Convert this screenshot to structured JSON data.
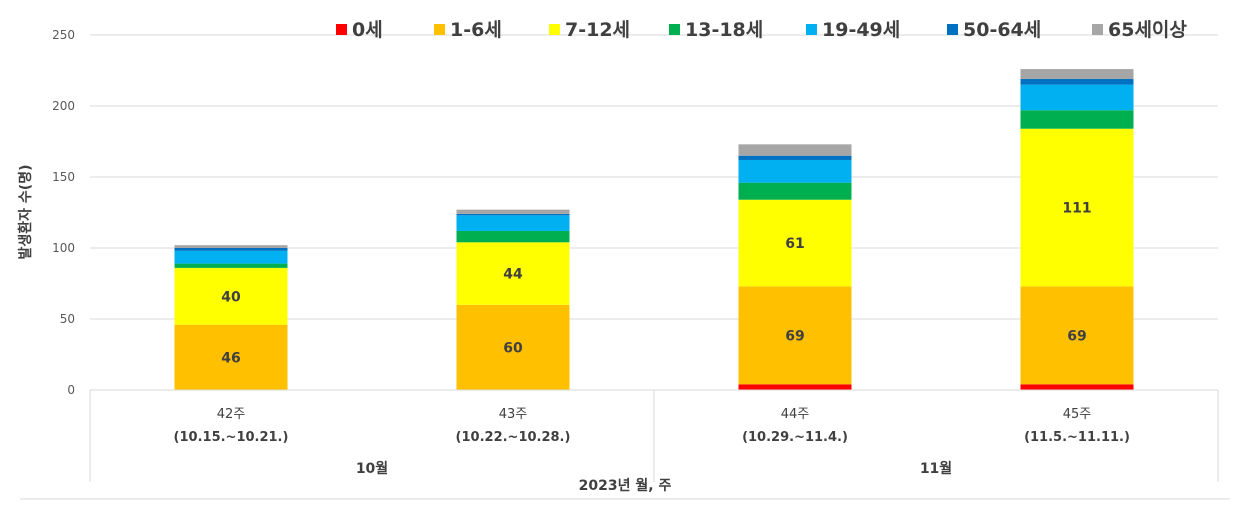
{
  "chart_data": {
    "type": "bar",
    "stacked": true,
    "categories": [
      "42주",
      "43주",
      "44주",
      "45주"
    ],
    "category_sublabels": [
      "(10.15.~10.21.)",
      "(10.22.~10.28.)",
      "(10.29.~11.4.)",
      "(11.5.~11.11.)"
    ],
    "groups": [
      {
        "label": "10월",
        "categories": [
          0,
          1
        ]
      },
      {
        "label": "11월",
        "categories": [
          2,
          3
        ]
      }
    ],
    "series": [
      {
        "name": "0세",
        "color": "#ff0000",
        "values": [
          0,
          0,
          4,
          4
        ]
      },
      {
        "name": "1-6세",
        "color": "#ffc000",
        "values": [
          46,
          60,
          69,
          69
        ]
      },
      {
        "name": "7-12세",
        "color": "#ffff00",
        "values": [
          40,
          44,
          61,
          111
        ]
      },
      {
        "name": "13-18세",
        "color": "#00b050",
        "values": [
          3,
          8,
          12,
          13
        ]
      },
      {
        "name": "19-49세",
        "color": "#00b0f0",
        "values": [
          9,
          11,
          16,
          18
        ]
      },
      {
        "name": "50-64세",
        "color": "#0070c0",
        "values": [
          2,
          1,
          3,
          4
        ]
      },
      {
        "name": "65세이상",
        "color": "#a6a6a6",
        "values": [
          2,
          3,
          8,
          7
        ]
      }
    ],
    "labeled_series": [
      "1-6세",
      "7-12세"
    ],
    "xlabel": "2023년 월, 주",
    "ylabel": "발생환자 수(명)",
    "ylim": [
      0,
      250
    ],
    "yticks": [
      0,
      50,
      100,
      150,
      200,
      250
    ],
    "grid": true,
    "legend_position": "top"
  }
}
